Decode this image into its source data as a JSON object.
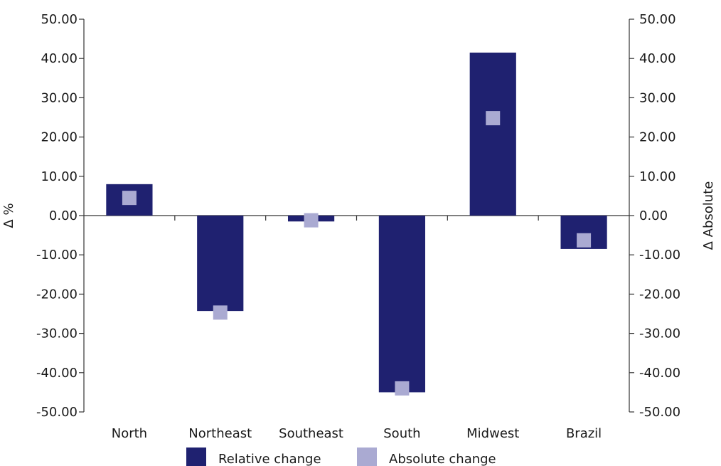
{
  "chart_data": {
    "type": "bar",
    "categories": [
      "North",
      "Northeast",
      "Southeast",
      "South",
      "Midwest",
      "Brazil"
    ],
    "series": [
      {
        "name": "Relative change",
        "kind": "bar",
        "axis": "left",
        "color": "#1f2170",
        "values": [
          8.0,
          -24.3,
          -1.5,
          -45.0,
          41.5,
          -8.5
        ]
      },
      {
        "name": "Absolute change",
        "kind": "marker",
        "axis": "right",
        "color": "#aaaad2",
        "values": [
          4.5,
          -24.7,
          -1.2,
          -44.0,
          24.8,
          -6.3
        ]
      }
    ],
    "ylabel": "Δ %",
    "y2label": "Δ Absolute",
    "ylim": [
      -50,
      50
    ],
    "y2lim": [
      -50,
      50
    ],
    "yticks": [
      "50.00",
      "40.00",
      "30.00",
      "20.00",
      "10.00",
      "0.00",
      "-10.00",
      "-20.00",
      "-30.00",
      "-40.00",
      "-50.00"
    ],
    "y2ticks": [
      "50.00",
      "40.00",
      "30.00",
      "20.00",
      "10.00",
      "0.00",
      "-10.00",
      "-20.00",
      "-30.00",
      "-40.00",
      "-50.00"
    ],
    "grid": false,
    "legend": "bottom"
  }
}
